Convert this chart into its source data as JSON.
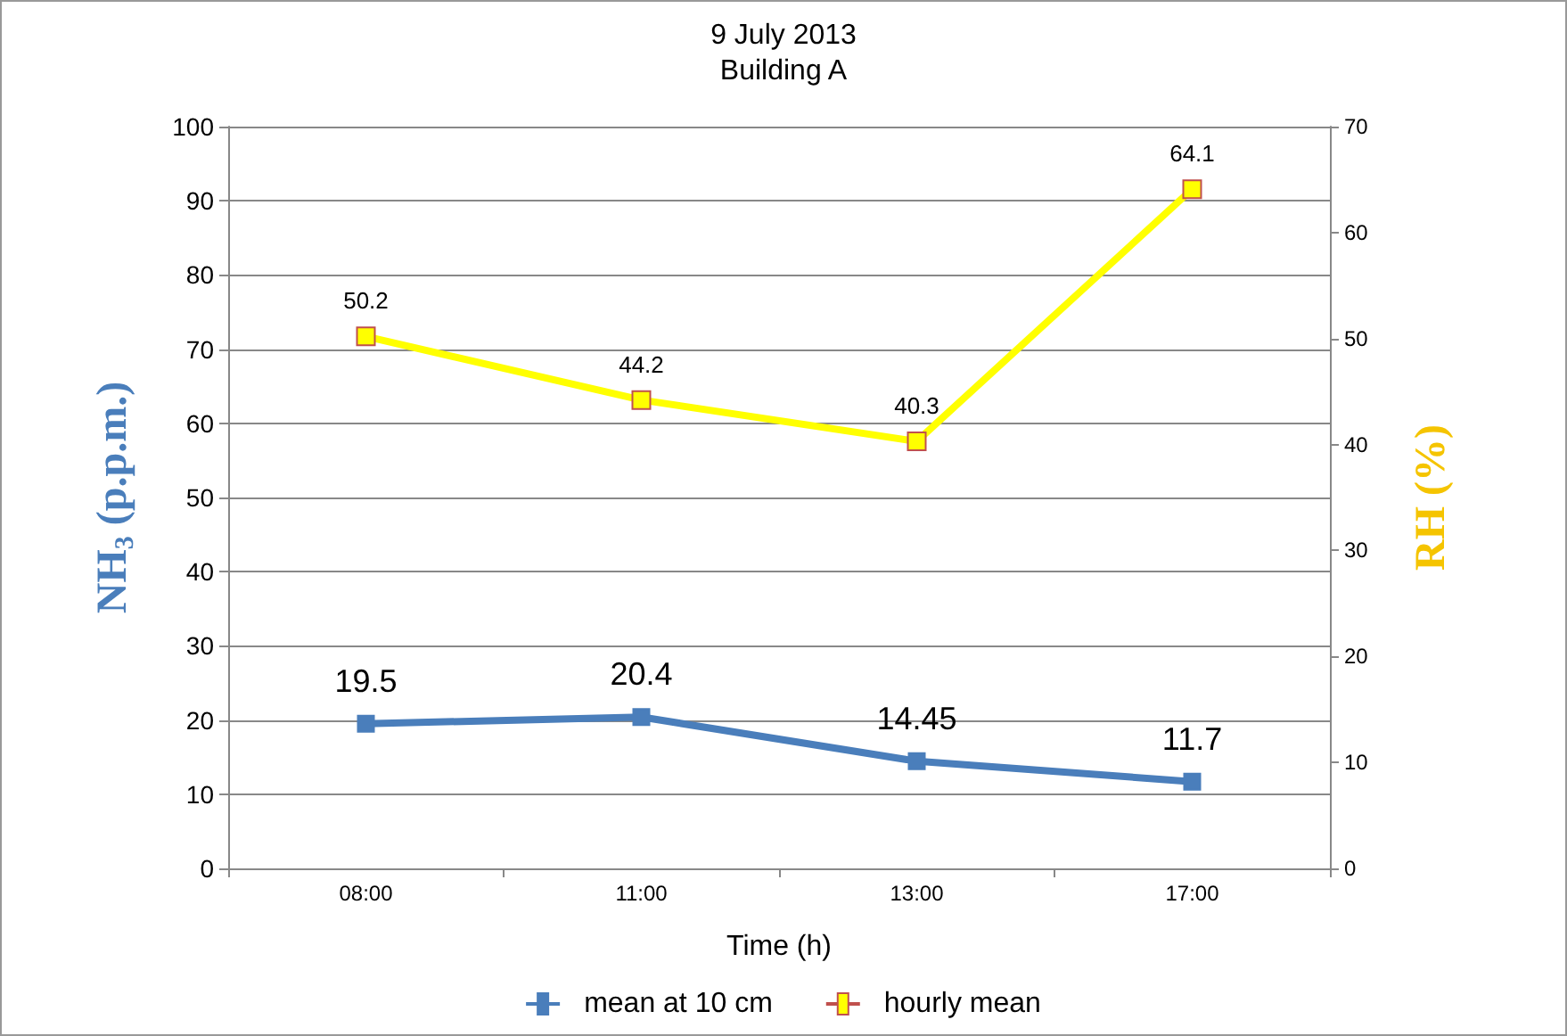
{
  "chart_data": {
    "type": "line",
    "title": "9 July 2013",
    "subtitle": "Building A",
    "xlabel": "Time (h)",
    "ylabel": "NH$_{3}$ (p.p.m.)",
    "y2label": "RH (%)",
    "categories": [
      "08:00",
      "11:00",
      "13:00",
      "17:00"
    ],
    "series": [
      {
        "name": "mean at 10 cm",
        "color": "#4a7ebb",
        "values": [
          19.5,
          20.4,
          14.45,
          11.7
        ]
      },
      {
        "name": "hourly mean",
        "color": "#ffff00",
        "values": [
          50.2,
          44.2,
          40.3,
          64.1
        ],
        "axis": "y2"
      }
    ],
    "ylim": [
      0,
      100
    ],
    "yticks": [
      0,
      10,
      20,
      30,
      40,
      50,
      60,
      70,
      80,
      90,
      100
    ],
    "y2lim": [
      0,
      70
    ],
    "y2ticks": [
      0,
      10,
      20,
      30,
      40,
      50,
      60,
      70
    ],
    "data_labels": true,
    "grid": "y",
    "legend": "bottom",
    "marker": "square",
    "line_style": "solid"
  }
}
